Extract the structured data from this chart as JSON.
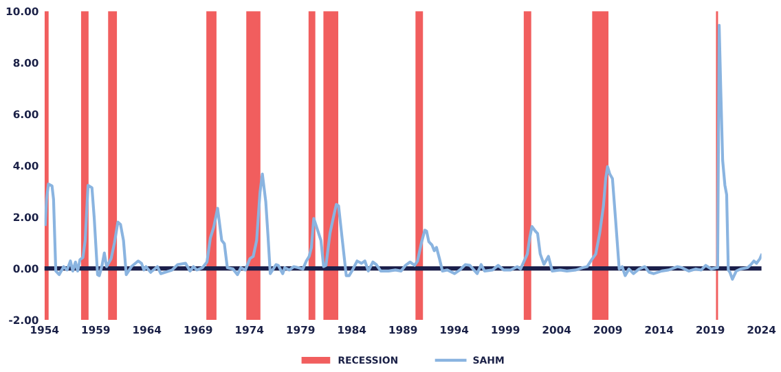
{
  "chart_data": {
    "type": "line",
    "series": [
      {
        "name": "SAHM",
        "color": "#8ab4e0",
        "x": [
          1954.07,
          1954.2,
          1954.38,
          1954.73,
          1954.88,
          1955.1,
          1955.43,
          1955.87,
          1956.2,
          1956.53,
          1956.76,
          1957.02,
          1957.24,
          1957.46,
          1957.75,
          1957.97,
          1958.25,
          1958.63,
          1958.85,
          1959.18,
          1959.35,
          1959.62,
          1959.84,
          1960.06,
          1960.5,
          1960.83,
          1961.16,
          1961.42,
          1961.71,
          1961.98,
          1962.48,
          1963.14,
          1963.47,
          1963.7,
          1963.91,
          1964.36,
          1965.02,
          1965.35,
          1966.45,
          1967.0,
          1967.77,
          1968.21,
          1968.54,
          1968.87,
          1969.42,
          1969.86,
          1970.19,
          1970.52,
          1970.9,
          1971.3,
          1971.56,
          1971.85,
          1972.4,
          1972.84,
          1973.17,
          1973.61,
          1974.05,
          1974.38,
          1974.71,
          1975.04,
          1975.27,
          1975.6,
          1975.82,
          1976.04,
          1976.6,
          1976.82,
          1977.26,
          1977.46,
          1977.9,
          1978.34,
          1978.78,
          1979.23,
          1979.56,
          1979.84,
          1980.06,
          1980.29,
          1980.55,
          1980.99,
          1981.25,
          1981.48,
          1981.87,
          1982.2,
          1982.49,
          1982.71,
          1983.08,
          1983.46,
          1983.74,
          1984.07,
          1984.52,
          1984.95,
          1985.28,
          1985.61,
          1986.06,
          1986.39,
          1986.83,
          1987.6,
          1988.26,
          1988.81,
          1989.25,
          1989.69,
          1990.13,
          1990.42,
          1990.8,
          1991.13,
          1991.3,
          1991.52,
          1991.83,
          1992.05,
          1992.27,
          1992.56,
          1992.85,
          1993.33,
          1994.04,
          1994.54,
          1995.09,
          1995.53,
          1996.24,
          1996.63,
          1996.96,
          1997.74,
          1998.29,
          1998.83,
          1999.5,
          2000.15,
          2000.48,
          2000.93,
          2001.14,
          2001.37,
          2001.59,
          2001.92,
          2002.14,
          2002.4,
          2002.76,
          2003.2,
          2003.57,
          2004.35,
          2005.0,
          2005.88,
          2006.54,
          2006.98,
          2007.42,
          2007.82,
          2008.2,
          2008.57,
          2008.79,
          2008.97,
          2009.19,
          2009.45,
          2009.74,
          2010.11,
          2010.4,
          2010.69,
          2011.06,
          2011.5,
          2012.05,
          2012.61,
          2013.04,
          2013.49,
          2014.26,
          2014.92,
          2015.8,
          2016.24,
          2016.9,
          2017.56,
          2018.11,
          2018.56,
          2019.1,
          2019.61,
          2019.72,
          2019.87,
          2020.03,
          2020.21,
          2020.43,
          2020.6,
          2020.76,
          2020.92,
          2021.16,
          2021.54,
          2021.97,
          2022.64,
          2022.97,
          2023.26,
          2023.52,
          2023.85,
          2024.0
        ],
        "values": [
          1.71,
          2.69,
          3.28,
          3.21,
          2.69,
          -0.1,
          -0.24,
          0.07,
          -0.06,
          0.29,
          -0.1,
          0.25,
          -0.1,
          0.34,
          0.43,
          1.09,
          3.23,
          3.14,
          1.98,
          -0.24,
          -0.28,
          0.12,
          0.6,
          0.07,
          0.38,
          1.0,
          1.8,
          1.71,
          1.09,
          -0.24,
          0.07,
          0.29,
          0.2,
          -0.06,
          0.07,
          -0.15,
          0.07,
          -0.2,
          -0.06,
          0.15,
          0.2,
          -0.1,
          0.07,
          -0.06,
          0.03,
          0.25,
          1.18,
          1.6,
          2.34,
          1.09,
          0.96,
          0.03,
          -0.02,
          -0.24,
          0.03,
          -0.06,
          0.38,
          0.47,
          1.09,
          2.96,
          3.67,
          2.6,
          1.27,
          -0.2,
          0.15,
          0.12,
          -0.2,
          0.03,
          -0.06,
          0.07,
          0.03,
          -0.02,
          0.29,
          0.47,
          0.82,
          1.94,
          1.63,
          1.09,
          0.07,
          0.12,
          1.36,
          1.98,
          2.49,
          2.43,
          1.09,
          -0.28,
          -0.28,
          -0.06,
          0.29,
          0.2,
          0.29,
          -0.1,
          0.25,
          0.15,
          -0.1,
          -0.1,
          -0.06,
          -0.1,
          0.12,
          0.25,
          0.12,
          0.29,
          1.0,
          1.49,
          1.45,
          1.04,
          0.91,
          0.69,
          0.82,
          0.38,
          -0.1,
          -0.06,
          -0.2,
          -0.06,
          0.15,
          0.12,
          -0.2,
          0.15,
          -0.1,
          -0.06,
          0.12,
          -0.06,
          -0.06,
          0.07,
          -0.02,
          0.38,
          0.56,
          1.18,
          1.63,
          1.45,
          1.36,
          0.56,
          0.16,
          0.47,
          -0.1,
          -0.06,
          -0.1,
          -0.06,
          0.03,
          0.07,
          0.34,
          0.56,
          1.36,
          2.43,
          3.49,
          3.96,
          3.67,
          3.49,
          1.98,
          -0.02,
          0.07,
          -0.28,
          -0.02,
          -0.2,
          -0.02,
          0.07,
          -0.15,
          -0.2,
          -0.1,
          -0.06,
          0.07,
          0.03,
          -0.1,
          -0.02,
          -0.06,
          0.12,
          -0.02,
          0.03,
          0.03,
          9.45,
          6.87,
          4.2,
          3.23,
          2.87,
          -0.06,
          -0.15,
          -0.42,
          -0.1,
          -0.02,
          0.03,
          0.15,
          0.29,
          0.2,
          0.38,
          0.52
        ]
      }
    ],
    "xlim": [
      1954,
      2024
    ],
    "xticks": [
      1954,
      1959,
      1964,
      1969,
      1974,
      1979,
      1984,
      1989,
      1994,
      1999,
      2004,
      2009,
      2014,
      2019,
      2024
    ],
    "ylim": [
      -2,
      10
    ],
    "yticks": [
      {
        "value": -2,
        "label": "-2.00"
      },
      {
        "value": 0,
        "label": "0.00"
      },
      {
        "value": 2,
        "label": "2.00"
      },
      {
        "value": 4,
        "label": "4.00"
      },
      {
        "value": 6,
        "label": "6.00"
      },
      {
        "value": 8,
        "label": "8.00"
      },
      {
        "value": 10,
        "label": "10.00"
      }
    ],
    "ref_lines": [
      {
        "axis": "y",
        "value": 0,
        "color": "#1b1f4a"
      }
    ],
    "bands": [
      {
        "axis": "x",
        "from": 1954.0,
        "to": 1954.4,
        "label": "RECESSION",
        "color": "#f15e5e"
      },
      {
        "axis": "x",
        "from": 1957.57,
        "to": 1958.3,
        "color": "#f15e5e"
      },
      {
        "axis": "x",
        "from": 1960.21,
        "to": 1961.07,
        "color": "#f15e5e"
      },
      {
        "axis": "x",
        "from": 1969.8,
        "to": 1970.79,
        "color": "#f15e5e"
      },
      {
        "axis": "x",
        "from": 1973.7,
        "to": 1975.08,
        "color": "#f15e5e"
      },
      {
        "axis": "x",
        "from": 1979.78,
        "to": 1980.44,
        "color": "#f15e5e"
      },
      {
        "axis": "x",
        "from": 1981.23,
        "to": 1982.68,
        "color": "#f15e5e"
      },
      {
        "axis": "x",
        "from": 1990.22,
        "to": 1990.95,
        "color": "#f15e5e"
      },
      {
        "axis": "x",
        "from": 2000.79,
        "to": 2001.52,
        "color": "#f15e5e"
      },
      {
        "axis": "x",
        "from": 2007.47,
        "to": 2009.06,
        "color": "#f15e5e"
      },
      {
        "axis": "x",
        "from": 2019.56,
        "to": 2019.76,
        "color": "#f15e5e"
      }
    ],
    "grid": false,
    "legend": "bottom",
    "marker": "none",
    "line_style": "solid"
  }
}
